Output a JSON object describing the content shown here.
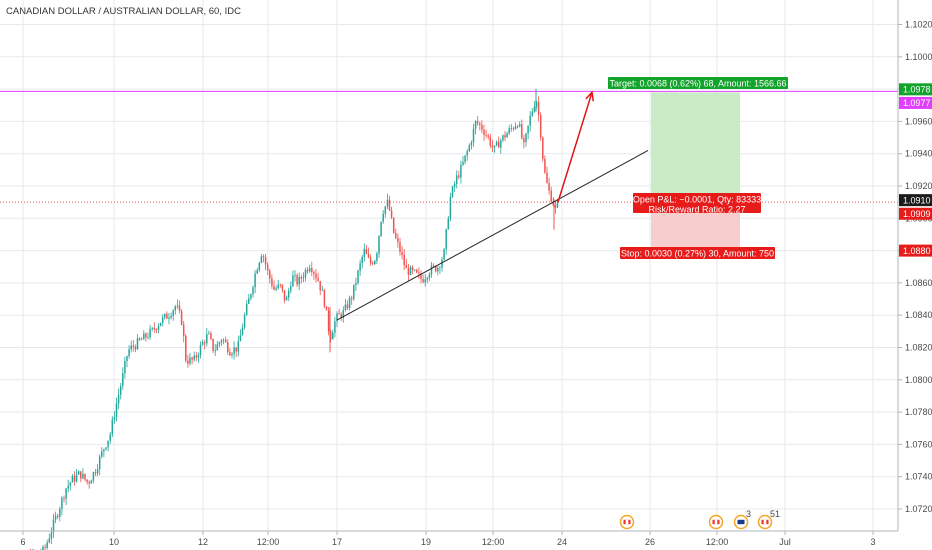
{
  "chart_title": "CANADIAN DOLLAR / AUSTRALIAN DOLLAR, 60, IDC",
  "colors": {
    "up": "#26a69a",
    "down": "#ef5350",
    "grid": "#e7e9ef",
    "magenta": "#e040fb",
    "green_tag": "#12a32a",
    "red_tag": "#e81b1b",
    "profit_zone": "#c9ecc6",
    "loss_zone": "#f8cdcd",
    "arrow": "#e01515",
    "trendline": "#222222"
  },
  "chart_data": {
    "type": "candlestick",
    "title": "CANADIAN DOLLAR / AUSTRALIAN DOLLAR, 60, IDC",
    "ylim": [
      1.07,
      1.103
    ],
    "y_ticks": [
      1.07,
      1.072,
      1.074,
      1.076,
      1.078,
      1.08,
      1.082,
      1.084,
      1.086,
      1.088,
      1.09,
      1.092,
      1.094,
      1.096,
      1.098,
      1.1,
      1.102
    ],
    "x_tick_labels": [
      "6",
      "10",
      "12",
      "12:00",
      "17",
      "19",
      "12:00",
      "24",
      "26",
      "12:00",
      "Jul",
      "3"
    ],
    "price_path": [
      [
        0,
        1.0688
      ],
      [
        8,
        1.069
      ],
      [
        14,
        1.0686
      ],
      [
        20,
        1.0684
      ],
      [
        28,
        1.069
      ],
      [
        36,
        1.0692
      ],
      [
        44,
        1.0694
      ],
      [
        52,
        1.0708
      ],
      [
        60,
        1.0722
      ],
      [
        66,
        1.0733
      ],
      [
        72,
        1.0738
      ],
      [
        80,
        1.0742
      ],
      [
        88,
        1.0736
      ],
      [
        96,
        1.0745
      ],
      [
        104,
        1.0758
      ],
      [
        110,
        1.0766
      ],
      [
        116,
        1.0784
      ],
      [
        122,
        1.08
      ],
      [
        128,
        1.0818
      ],
      [
        136,
        1.0822
      ],
      [
        144,
        1.0826
      ],
      [
        152,
        1.083
      ],
      [
        160,
        1.0836
      ],
      [
        168,
        1.084
      ],
      [
        176,
        1.0846
      ],
      [
        182,
        1.0836
      ],
      [
        186,
        1.0812
      ],
      [
        194,
        1.0812
      ],
      [
        202,
        1.0822
      ],
      [
        208,
        1.0828
      ],
      [
        214,
        1.0818
      ],
      [
        222,
        1.0826
      ],
      [
        230,
        1.0818
      ],
      [
        238,
        1.082
      ],
      [
        244,
        1.0838
      ],
      [
        250,
        1.0852
      ],
      [
        256,
        1.0868
      ],
      [
        262,
        1.088
      ],
      [
        268,
        1.0866
      ],
      [
        274,
        1.0856
      ],
      [
        280,
        1.0858
      ],
      [
        286,
        1.0848
      ],
      [
        292,
        1.0864
      ],
      [
        298,
        1.086
      ],
      [
        304,
        1.0866
      ],
      [
        310,
        1.0872
      ],
      [
        318,
        1.0862
      ],
      [
        324,
        1.085
      ],
      [
        330,
        1.0826
      ],
      [
        336,
        1.0838
      ],
      [
        344,
        1.0842
      ],
      [
        352,
        1.0852
      ],
      [
        358,
        1.0866
      ],
      [
        364,
        1.088
      ],
      [
        370,
        1.0872
      ],
      [
        376,
        1.0876
      ],
      [
        382,
        1.0904
      ],
      [
        388,
        1.091
      ],
      [
        394,
        1.089
      ],
      [
        400,
        1.088
      ],
      [
        406,
        1.0868
      ],
      [
        414,
        1.0866
      ],
      [
        422,
        1.0862
      ],
      [
        430,
        1.0868
      ],
      [
        438,
        1.087
      ],
      [
        444,
        1.0878
      ],
      [
        450,
        1.0912
      ],
      [
        456,
        1.0924
      ],
      [
        462,
        1.0932
      ],
      [
        470,
        1.0946
      ],
      [
        476,
        1.096
      ],
      [
        482,
        1.0956
      ],
      [
        488,
        1.095
      ],
      [
        494,
        1.0942
      ],
      [
        500,
        1.0948
      ],
      [
        506,
        1.0952
      ],
      [
        512,
        1.0956
      ],
      [
        518,
        1.096
      ],
      [
        524,
        1.0944
      ],
      [
        530,
        1.0962
      ],
      [
        536,
        1.0975
      ],
      [
        540,
        1.0958
      ],
      [
        544,
        1.093
      ],
      [
        548,
        1.0918
      ],
      [
        552,
        1.0912
      ],
      [
        556,
        1.0904
      ],
      [
        560,
        1.0915
      ]
    ],
    "trendline": {
      "from": [
        337,
        1.0837
      ],
      "to": [
        648,
        1.0942
      ]
    },
    "target_level": 1.0978,
    "current_price": 1.0977,
    "entry_level": 1.091,
    "entry_label": 1.0909,
    "stop_level": 1.088,
    "position": {
      "start_x": 651,
      "end_x": 740,
      "top": 1.0978,
      "entry": 1.091,
      "bottom": 1.088
    },
    "arrow": {
      "from": [
        558,
        1.091
      ],
      "to": [
        592,
        1.0978
      ]
    }
  },
  "price_tags": {
    "target": "1.0978",
    "current": "1.0977",
    "entry": "1.0910",
    "entry_sub": "1.0909",
    "stop": "1.0880"
  },
  "annotations": {
    "target": "Target: 0.0068 (0.62%) 68, Amount: 1566.66",
    "open_pnl": "Open P&L: −0.0001, Qty: 83333",
    "risk_reward": "Risk/Reward Ratio: 2.27",
    "stop": "Stop: 0.0030 (0.27%) 30, Amount: 750"
  },
  "events": [
    {
      "label": "",
      "kind": "canada-flag-icon",
      "x": 627
    },
    {
      "label": "",
      "kind": "canada-flag-icon",
      "x": 716
    },
    {
      "label": "3",
      "kind": "australia-flag-icon",
      "x": 741
    },
    {
      "label": "51",
      "kind": "canada-flag-icon",
      "x": 765
    }
  ]
}
